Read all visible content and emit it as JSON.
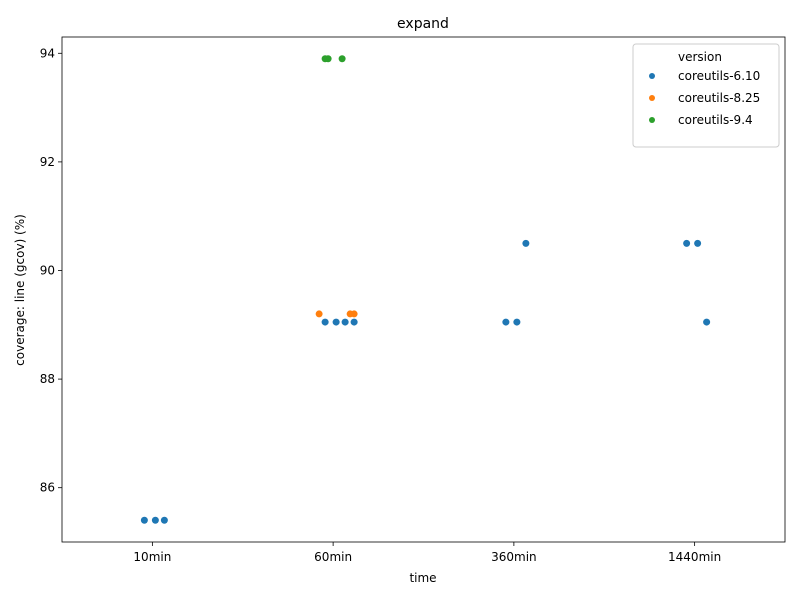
{
  "chart_data": {
    "type": "scatter",
    "title": "expand",
    "xlabel": "time",
    "ylabel": "coverage: line (gcov) (%)",
    "categories": [
      "10min",
      "60min",
      "360min",
      "1440min"
    ],
    "ylim": [
      85.0,
      94.3
    ],
    "yticks": [
      86,
      88,
      90,
      92,
      94
    ],
    "grid": false,
    "legend": {
      "title": "version",
      "placement": "top-right"
    },
    "series": [
      {
        "name": "coreutils-6.10",
        "color": "#1f77b4",
        "points": [
          {
            "x": "10min",
            "y": 85.4
          },
          {
            "x": "10min",
            "y": 85.4
          },
          {
            "x": "10min",
            "y": 85.4
          },
          {
            "x": "60min",
            "y": 89.05
          },
          {
            "x": "60min",
            "y": 89.05
          },
          {
            "x": "60min",
            "y": 89.05
          },
          {
            "x": "60min",
            "y": 89.05
          },
          {
            "x": "360min",
            "y": 89.05
          },
          {
            "x": "360min",
            "y": 89.05
          },
          {
            "x": "360min",
            "y": 90.5
          },
          {
            "x": "1440min",
            "y": 90.5
          },
          {
            "x": "1440min",
            "y": 90.5
          },
          {
            "x": "1440min",
            "y": 89.05
          }
        ]
      },
      {
        "name": "coreutils-8.25",
        "color": "#ff7f0e",
        "points": [
          {
            "x": "60min",
            "y": 89.2
          },
          {
            "x": "60min",
            "y": 89.2
          },
          {
            "x": "60min",
            "y": 89.2
          }
        ]
      },
      {
        "name": "coreutils-9.4",
        "color": "#2ca02c",
        "points": [
          {
            "x": "60min",
            "y": 93.9
          },
          {
            "x": "60min",
            "y": 93.9
          },
          {
            "x": "60min",
            "y": 93.9
          }
        ]
      }
    ]
  }
}
